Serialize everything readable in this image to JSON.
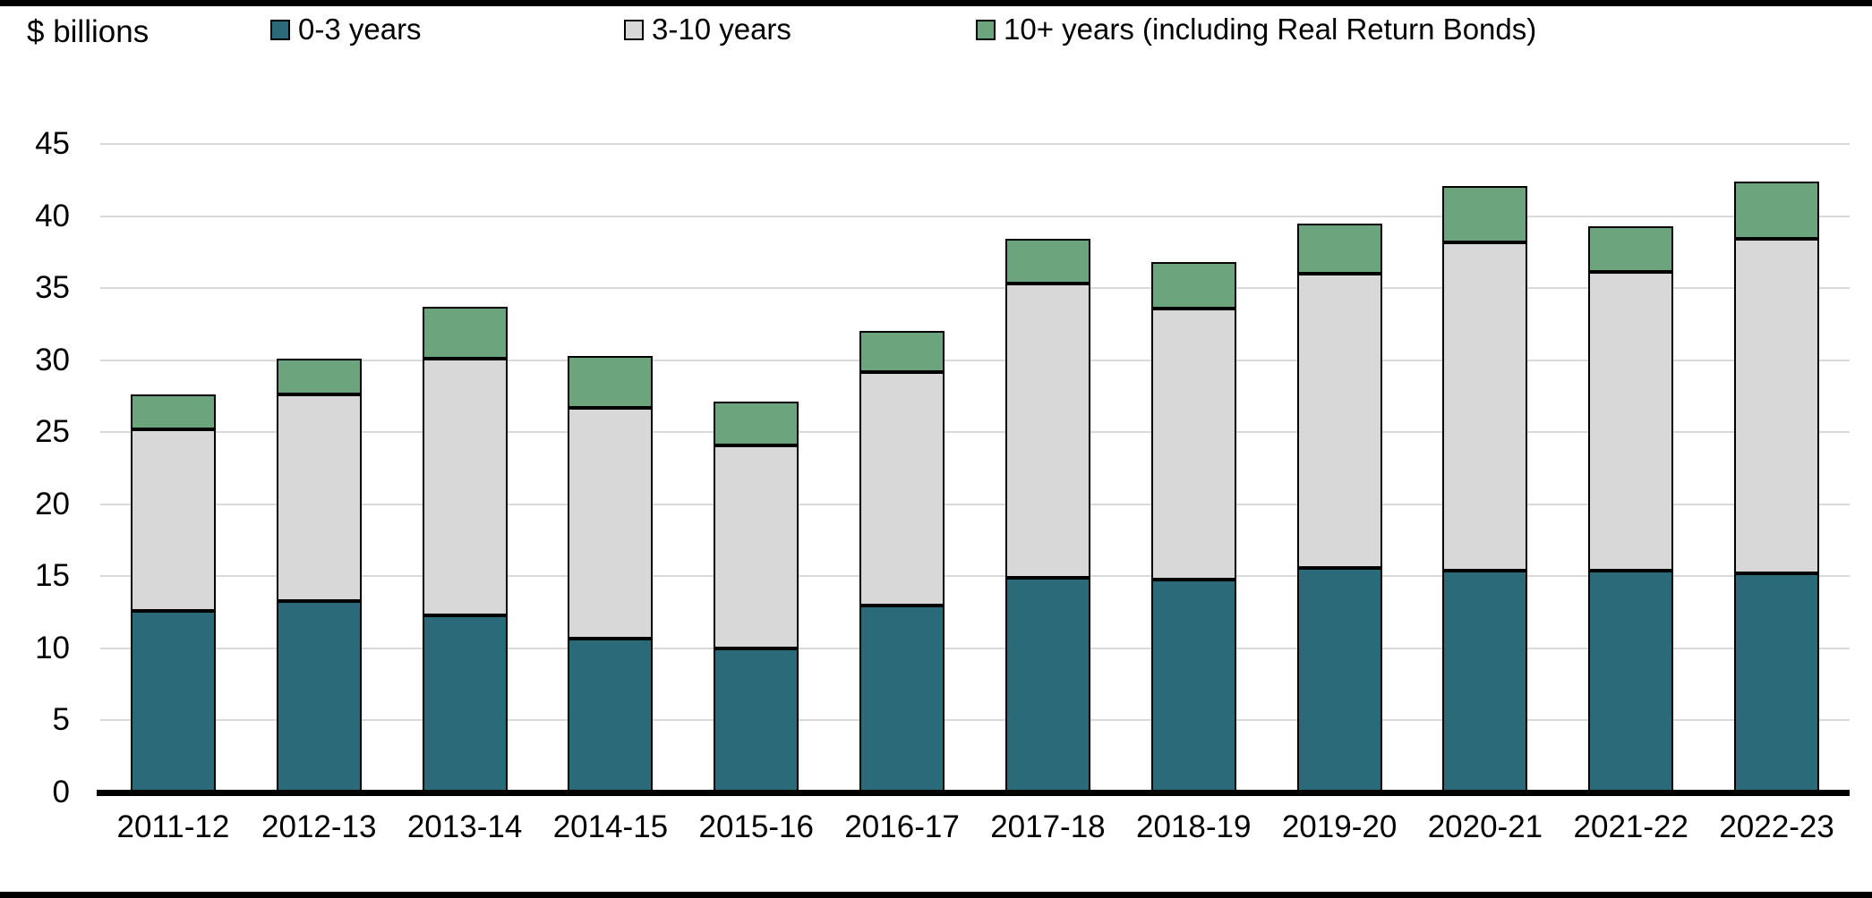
{
  "header": {
    "units_label": "$ billions"
  },
  "colors": {
    "series_0_3": "#2a6a79",
    "series_3_10": "#d8d8d8",
    "series_10_plus": "#6ca57d",
    "gridline": "#d9d9d9",
    "axis_line": "#000000",
    "background": "#ffffff"
  },
  "chart_data": {
    "type": "bar",
    "subtype": "stacked",
    "title": "",
    "xlabel": "",
    "ylabel": "$ billions",
    "categories": [
      "2011-12",
      "2012-13",
      "2013-14",
      "2014-15",
      "2015-16",
      "2016-17",
      "2017-18",
      "2018-19",
      "2019-20",
      "2020-21",
      "2021-22",
      "2022-23"
    ],
    "series": [
      {
        "name": "0-3 years",
        "color": "#2a6a79",
        "values": [
          12.6,
          13.3,
          12.3,
          10.7,
          10.0,
          13.0,
          14.9,
          14.8,
          15.6,
          15.4,
          15.4,
          15.2
        ]
      },
      {
        "name": "3-10 years",
        "color": "#d8d8d8",
        "values": [
          12.6,
          14.3,
          17.8,
          16.0,
          14.1,
          16.2,
          20.4,
          18.8,
          20.4,
          22.8,
          20.7,
          23.2
        ]
      },
      {
        "name": "10+ years (including Real Return Bonds)",
        "color": "#6ca57d",
        "values": [
          2.4,
          2.5,
          3.6,
          3.6,
          3.0,
          2.8,
          3.1,
          3.2,
          3.5,
          3.9,
          3.2,
          4.0
        ]
      }
    ],
    "stacked_totals": [
      27.6,
      30.1,
      33.7,
      30.3,
      27.1,
      32.0,
      38.4,
      36.8,
      39.5,
      42.1,
      39.3,
      42.4
    ],
    "ylim": [
      0,
      45
    ],
    "ytick_step": 5,
    "ytick_labels": [
      "0",
      "5",
      "10",
      "15",
      "20",
      "25",
      "30",
      "35",
      "40",
      "45"
    ],
    "grid": true,
    "legend_position": "top"
  }
}
